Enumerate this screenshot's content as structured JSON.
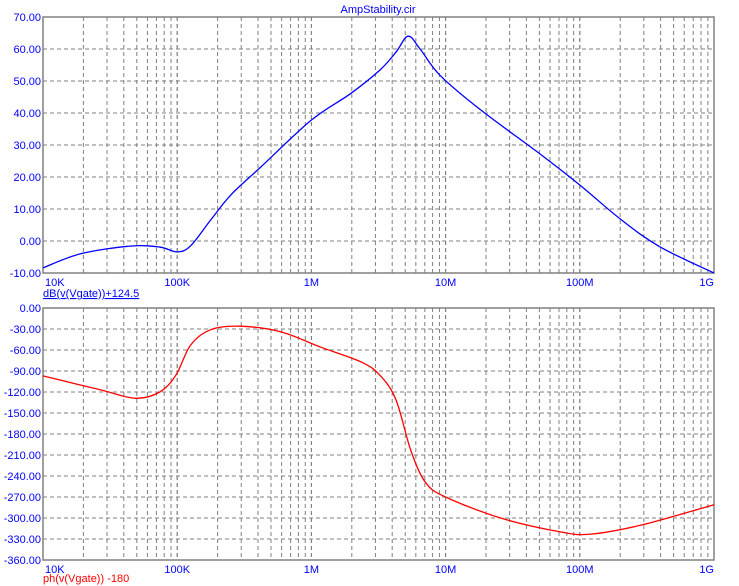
{
  "title": "AmpStability.cir",
  "colors": {
    "axis_text": "#0000ff",
    "grid": "#808080",
    "trace1": "#0000ff",
    "trace2": "#ff0000"
  },
  "chart_data": [
    {
      "type": "line",
      "title": "AmpStability.cir",
      "xscale": "log",
      "xlim": [
        10000,
        1000000000
      ],
      "x_tick_labels": [
        "10K",
        "100K",
        "1M",
        "10M",
        "100M",
        "1G"
      ],
      "ylim": [
        -10,
        70
      ],
      "y_tick_labels": [
        "70.00",
        "60.00",
        "50.00",
        "40.00",
        "30.00",
        "20.00",
        "10.00",
        "0.00",
        "-10.00"
      ],
      "grid": true,
      "series": [
        {
          "name": "dB(v(Vgate))+124.5",
          "color": "#0000ff",
          "log10_x": [
            4.0,
            4.28,
            4.65,
            4.87,
            5.0,
            5.1,
            5.25,
            5.4,
            5.62,
            6.0,
            6.29,
            6.51,
            6.63,
            6.72,
            6.81,
            6.96,
            7.26,
            7.71,
            8.0,
            8.31,
            8.6,
            9.0
          ],
          "y": [
            -8.4,
            -4,
            -1.6,
            -1.9,
            -3.4,
            -1.5,
            6.6,
            14.4,
            23,
            37.8,
            46,
            53.4,
            59,
            64,
            60,
            51.7,
            41,
            27,
            17.5,
            6.6,
            -1.9,
            -10
          ]
        }
      ]
    },
    {
      "type": "line",
      "xscale": "log",
      "xlim": [
        10000,
        1000000000
      ],
      "x_tick_labels": [
        "10K",
        "100K",
        "1M",
        "10M",
        "100M",
        "1G"
      ],
      "ylim": [
        -360,
        0
      ],
      "y_tick_labels": [
        "0.00",
        "-30.00",
        "-60.00",
        "-90.00",
        "-120.00",
        "-150.00",
        "-180.00",
        "-210.00",
        "-240.00",
        "-270.00",
        "-300.00",
        "-330.00",
        "-360.00"
      ],
      "grid": true,
      "series": [
        {
          "name": "ph(v(Vgate)) -180",
          "color": "#ff0000",
          "log10_x": [
            4.0,
            4.43,
            4.69,
            4.87,
            4.99,
            5.1,
            5.25,
            5.47,
            5.77,
            6.07,
            6.37,
            6.51,
            6.63,
            6.74,
            6.85,
            7.0,
            7.41,
            7.86,
            8.08,
            8.46,
            9.0
          ],
          "y": [
            -97,
            -117,
            -129,
            -120,
            -96,
            -53,
            -31,
            -26,
            -34,
            -56,
            -77,
            -96,
            -131,
            -203,
            -249,
            -270,
            -300,
            -320,
            -323,
            -310,
            -281
          ]
        }
      ]
    }
  ]
}
